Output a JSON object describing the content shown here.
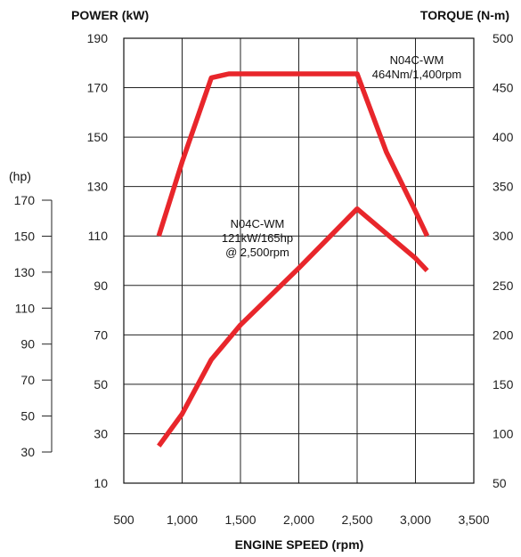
{
  "chart_data": {
    "type": "line",
    "title": "",
    "xlabel": "ENGINE SPEED (rpm)",
    "ylabel_left": "POWER (kW)",
    "ylabel_right": "TORQUE (N-m)",
    "ylabel_hp": "(hp)",
    "xlim": [
      500,
      3500
    ],
    "ylim_left": [
      10,
      190
    ],
    "ylim_right": [
      50,
      500
    ],
    "ylim_hp": [
      30,
      170
    ],
    "x_ticks": [
      "500",
      "1,000",
      "1,500",
      "2,000",
      "2,500",
      "3,000",
      "3,500"
    ],
    "x_tick_values": [
      500,
      1000,
      1500,
      2000,
      2500,
      3000,
      3500
    ],
    "y_left_ticks": [
      "10",
      "30",
      "50",
      "70",
      "90",
      "110",
      "130",
      "150",
      "170",
      "190"
    ],
    "y_left_tick_values": [
      10,
      30,
      50,
      70,
      90,
      110,
      130,
      150,
      170,
      190
    ],
    "y_right_ticks": [
      "50",
      "100",
      "150",
      "200",
      "250",
      "300",
      "350",
      "400",
      "450",
      "500"
    ],
    "y_right_tick_values": [
      50,
      100,
      150,
      200,
      250,
      300,
      350,
      400,
      450,
      500
    ],
    "hp_ticks": [
      "30",
      "50",
      "70",
      "90",
      "110",
      "130",
      "150",
      "170"
    ],
    "hp_tick_values": [
      30,
      50,
      70,
      90,
      110,
      130,
      150,
      170
    ],
    "grid": true,
    "series": [
      {
        "axis": "right",
        "color": "#e8262b",
        "x": [
          800,
          1000,
          1250,
          1400,
          2500,
          2750,
          3000,
          3100
        ],
        "y": [
          300,
          375,
          460,
          464,
          464,
          385,
          325,
          300
        ]
      },
      {
        "axis": "left",
        "color": "#e8262b",
        "x": [
          800,
          1000,
          1250,
          1500,
          2000,
          2500,
          3000,
          3100
        ],
        "y": [
          25,
          38,
          60,
          74,
          97,
          121,
          101,
          96
        ]
      }
    ],
    "annotations": [
      {
        "lines": [
          "N04C-WM",
          "464Nm/1,400rpm"
        ]
      },
      {
        "lines": [
          "N04C-WM",
          "121kW/165hp",
          "@ 2,500rpm"
        ]
      }
    ]
  }
}
